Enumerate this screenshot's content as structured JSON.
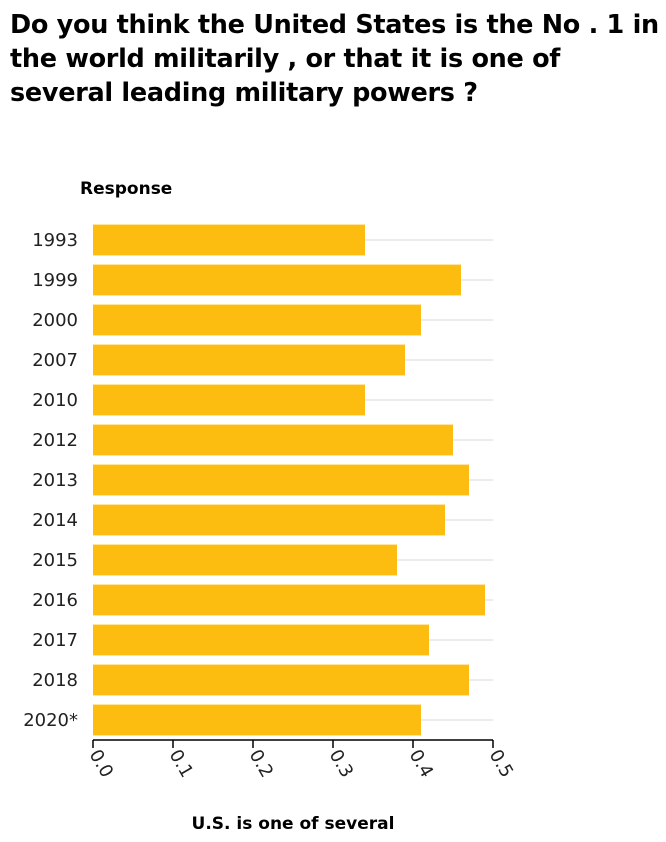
{
  "chart_data": {
    "type": "bar",
    "orientation": "horizontal",
    "title": "Do you think the United States is the No . 1 in the world militarily , or that it is one of several leading military powers ?",
    "ylabel": "Response",
    "xlabel": "U.S. is one of several",
    "categories": [
      "1993",
      "1999",
      "2000",
      "2007",
      "2010",
      "2012",
      "2013",
      "2014",
      "2015",
      "2016",
      "2017",
      "2018",
      "2020*"
    ],
    "values": [
      0.34,
      0.46,
      0.41,
      0.39,
      0.34,
      0.45,
      0.47,
      0.44,
      0.38,
      0.49,
      0.42,
      0.47,
      0.41
    ],
    "xlim": [
      0,
      0.5
    ],
    "xticks": [
      "0.0",
      "0.1",
      "0.2",
      "0.3",
      "0.4",
      "0.5"
    ],
    "bar_color": "#FDBD10",
    "grid": true
  }
}
